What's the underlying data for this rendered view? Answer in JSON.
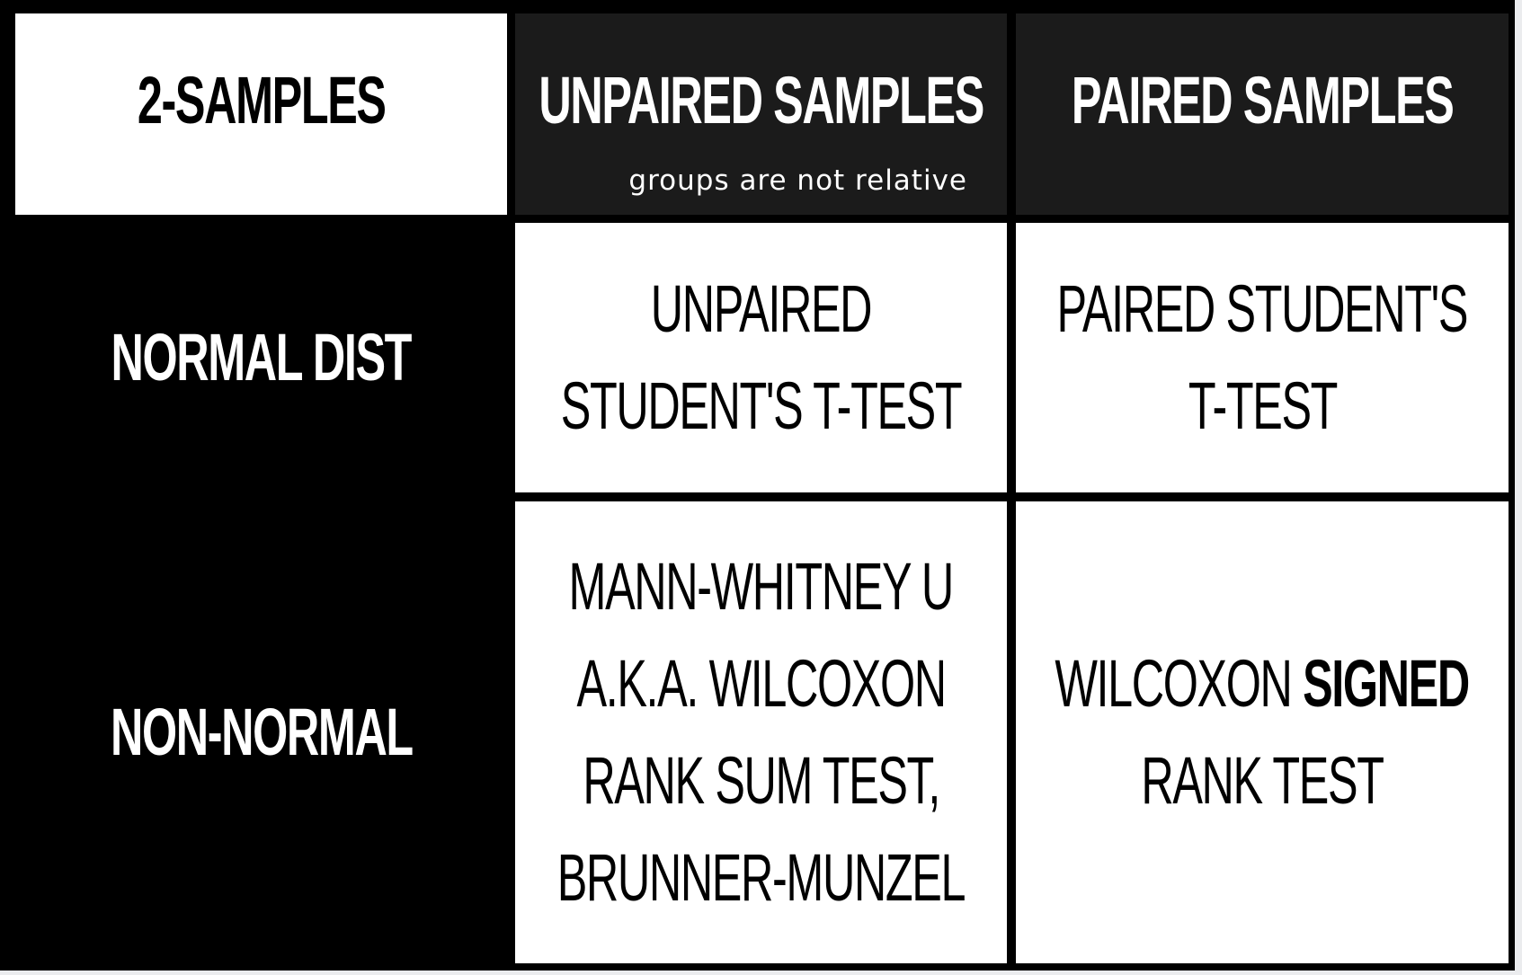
{
  "table": {
    "corner_label": "2-SAMPLES",
    "columns": [
      {
        "title": "UNPAIRED SAMPLES",
        "subtitle": "groups are not relative"
      },
      {
        "title": "PAIRED SAMPLES"
      }
    ],
    "rows": [
      {
        "label": "NORMAL DIST",
        "cells": [
          {
            "lines": [
              "UNPAIRED",
              "STUDENT'S T-TEST"
            ]
          },
          {
            "lines": [
              "PAIRED STUDENT'S",
              "T-TEST"
            ]
          }
        ]
      },
      {
        "label": "NON-NORMAL",
        "cells": [
          {
            "lines": [
              "MANN-WHITNEY U",
              "A.K.A. WILCOXON",
              "RANK SUM TEST,",
              "BRUNNER-MUNZEL"
            ]
          },
          {
            "line1_regular": "WILCOXON ",
            "line1_bold": "SIGNED",
            "line2": "RANK TEST"
          }
        ]
      }
    ],
    "colors": {
      "background": "#000000",
      "header_dark": "#1b1b1b",
      "cell_light": "#ffffff",
      "text_dark": "#000000",
      "text_light": "#ffffff"
    }
  }
}
